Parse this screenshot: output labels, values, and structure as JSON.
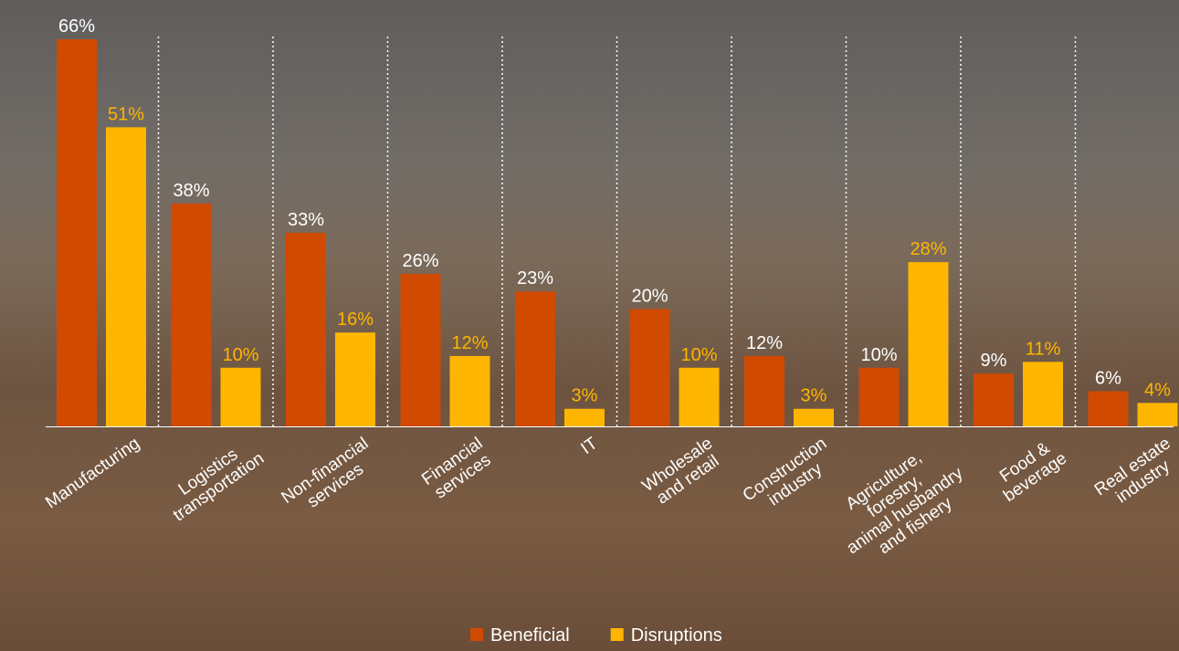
{
  "chart_data": {
    "type": "bar",
    "categories": [
      "Manufacturing",
      "Logistics\ntransportation",
      "Non-financial\nservices",
      "Financial\nservices",
      "IT",
      "Wholesale\nand retail",
      "Construction\nindustry",
      "Agriculture,\nforestry,\nanimal husbandry\nand fishery",
      "Food &\nbeverage",
      "Real estate\nindustry"
    ],
    "series": [
      {
        "name": "Beneficial",
        "color": "#d04a02",
        "label_color": "#ffffff",
        "values": [
          66,
          38,
          33,
          26,
          23,
          20,
          12,
          10,
          9,
          6
        ],
        "value_labels": [
          "66%",
          "38%",
          "33%",
          "26%",
          "23%",
          "20%",
          "12%",
          "10%",
          "9%",
          "6%"
        ]
      },
      {
        "name": "Disruptions",
        "color": "#ffb600",
        "label_color": "#ffb600",
        "values": [
          51,
          10,
          16,
          12,
          3,
          10,
          3,
          28,
          11,
          4
        ],
        "value_labels": [
          "51%",
          "10%",
          "16%",
          "12%",
          "3%",
          "10%",
          "3%",
          "28%",
          "11%",
          "4%"
        ]
      }
    ],
    "legend": "bottom"
  }
}
